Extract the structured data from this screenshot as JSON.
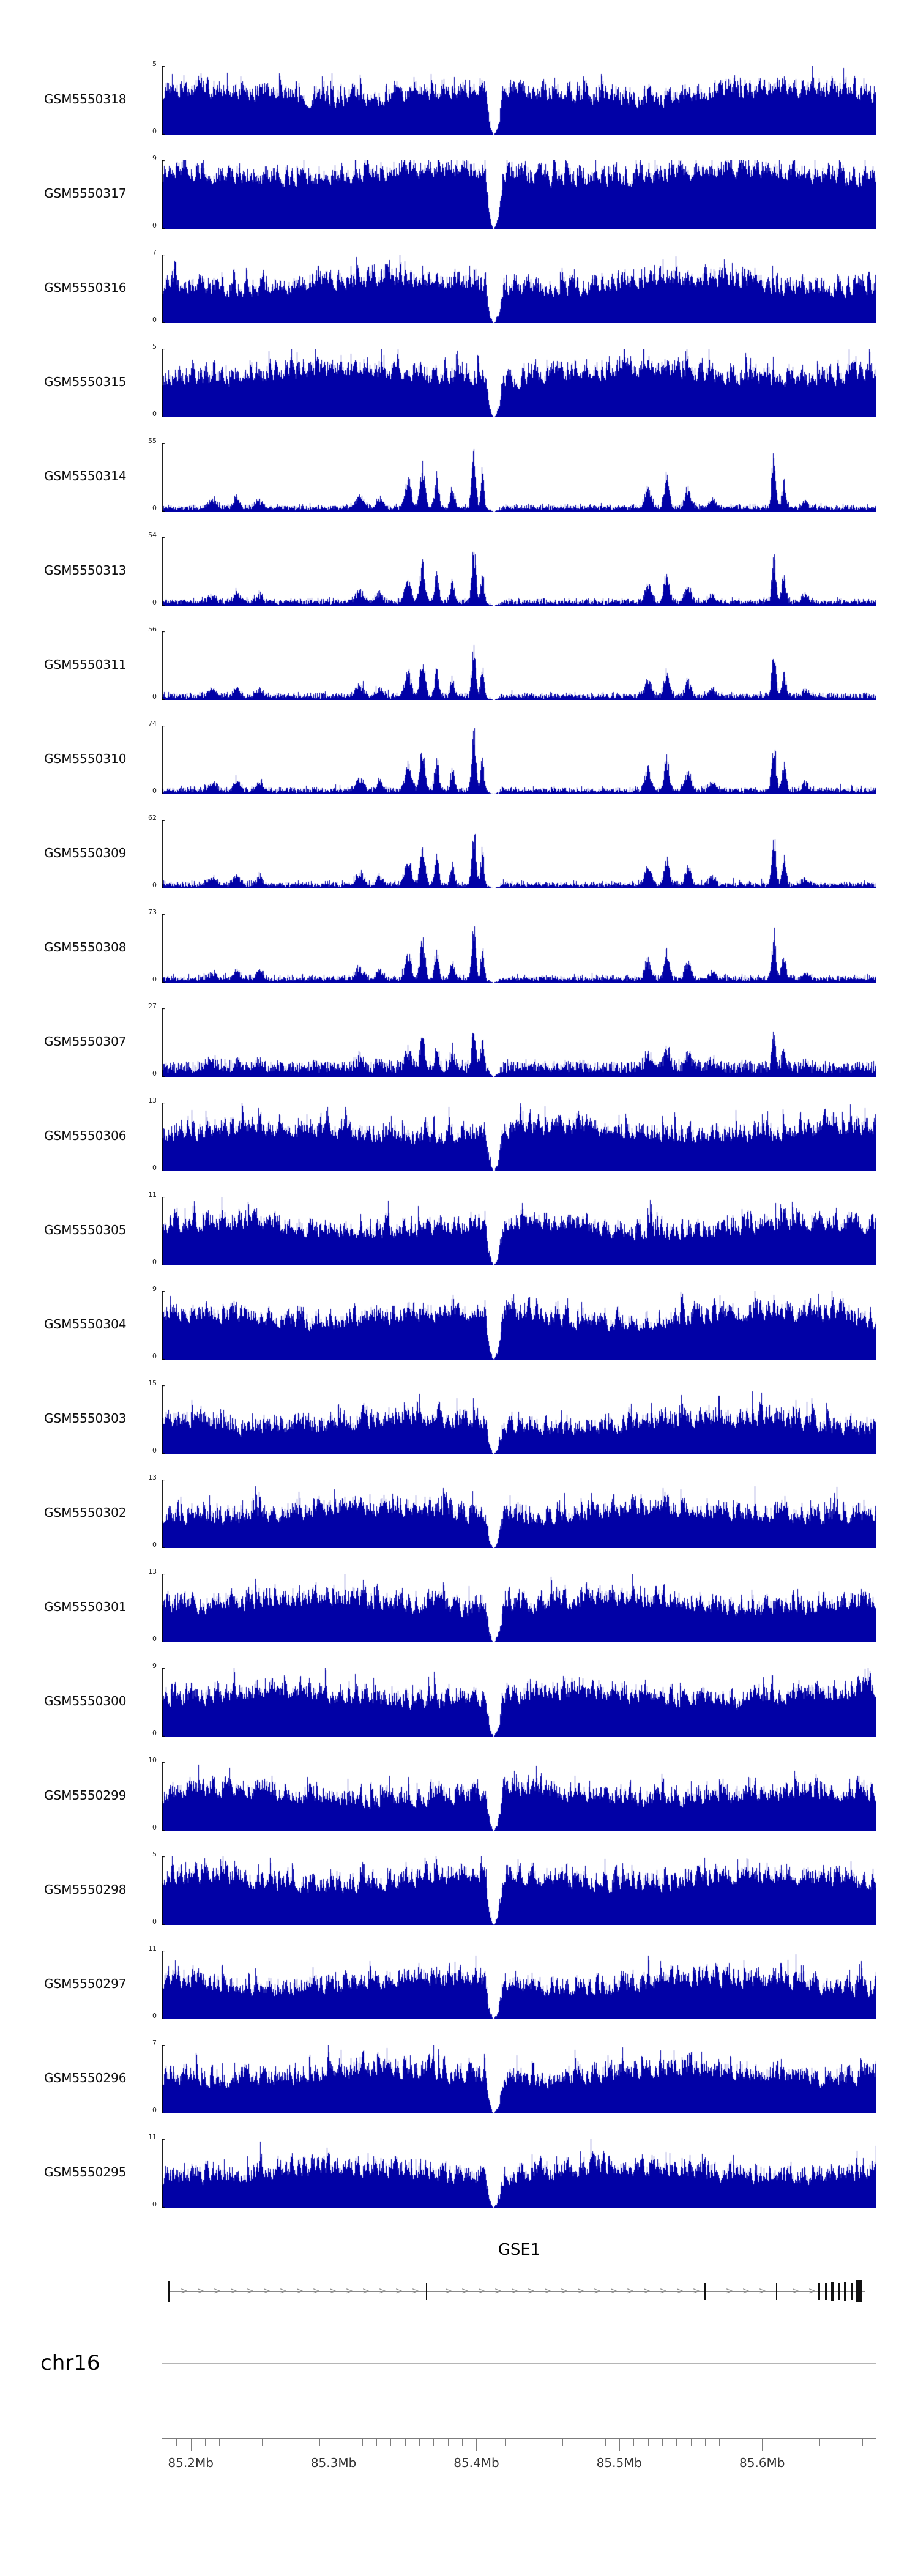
{
  "labels": {
    "gene_title": "GSE1",
    "chromosome": "chr16",
    "y_min": "0"
  },
  "chart_data": {
    "type": "area",
    "title": "",
    "description_type": "genome coverage tracks",
    "chromosome": "chr16",
    "x_range_mb": [
      85.18,
      85.68
    ],
    "x_tick_labels": [
      "85.2Mb",
      "85.3Mb",
      "85.4Mb",
      "85.5Mb",
      "85.6Mb"
    ],
    "x_tick_values_mb": [
      85.2,
      85.3,
      85.4,
      85.5,
      85.6
    ],
    "minor_tick_step_mb": 0.01,
    "grid": false,
    "legend": false,
    "signal_color": "#0101A6",
    "coverage_gap_mb": {
      "center": 85.412,
      "half_width": 0.006
    },
    "peak_profile": [
      {
        "mb": 85.215,
        "h": 0.12,
        "w": 0.004
      },
      {
        "mb": 85.232,
        "h": 0.18,
        "w": 0.003
      },
      {
        "mb": 85.248,
        "h": 0.14,
        "w": 0.003
      },
      {
        "mb": 85.318,
        "h": 0.2,
        "w": 0.004
      },
      {
        "mb": 85.332,
        "h": 0.16,
        "w": 0.003
      },
      {
        "mb": 85.352,
        "h": 0.45,
        "w": 0.003
      },
      {
        "mb": 85.362,
        "h": 0.7,
        "w": 0.0025
      },
      {
        "mb": 85.372,
        "h": 0.5,
        "w": 0.002
      },
      {
        "mb": 85.383,
        "h": 0.35,
        "w": 0.002
      },
      {
        "mb": 85.398,
        "h": 0.95,
        "w": 0.002
      },
      {
        "mb": 85.404,
        "h": 0.6,
        "w": 0.0015
      },
      {
        "mb": 85.52,
        "h": 0.35,
        "w": 0.003
      },
      {
        "mb": 85.533,
        "h": 0.5,
        "w": 0.0025
      },
      {
        "mb": 85.548,
        "h": 0.3,
        "w": 0.003
      },
      {
        "mb": 85.565,
        "h": 0.15,
        "w": 0.003
      },
      {
        "mb": 85.608,
        "h": 0.85,
        "w": 0.002
      },
      {
        "mb": 85.615,
        "h": 0.45,
        "w": 0.002
      },
      {
        "mb": 85.63,
        "h": 0.12,
        "w": 0.003
      }
    ],
    "tracks": [
      {
        "label": "GSM5550318",
        "ymin": 0,
        "ymax": 5,
        "profile": "dense",
        "fill": 0.52,
        "seed": 1
      },
      {
        "label": "GSM5550317",
        "ymin": 0,
        "ymax": 9,
        "profile": "dense",
        "fill": 0.72,
        "seed": 2
      },
      {
        "label": "GSM5550316",
        "ymin": 0,
        "ymax": 7,
        "profile": "dense",
        "fill": 0.5,
        "seed": 3
      },
      {
        "label": "GSM5550315",
        "ymin": 0,
        "ymax": 5,
        "profile": "dense",
        "fill": 0.55,
        "seed": 4
      },
      {
        "label": "GSM5550314",
        "ymin": 0,
        "ymax": 55,
        "profile": "peaks",
        "base": 0.05,
        "peak_scale": 1.0,
        "seed": 5
      },
      {
        "label": "GSM5550313",
        "ymin": 0,
        "ymax": 54,
        "profile": "peaks",
        "base": 0.05,
        "peak_scale": 0.92,
        "seed": 6
      },
      {
        "label": "GSM5550311",
        "ymin": 0,
        "ymax": 56,
        "profile": "peaks",
        "base": 0.05,
        "peak_scale": 0.88,
        "seed": 7
      },
      {
        "label": "GSM5550310",
        "ymin": 0,
        "ymax": 74,
        "profile": "peaks",
        "base": 0.05,
        "peak_scale": 1.0,
        "seed": 8
      },
      {
        "label": "GSM5550309",
        "ymin": 0,
        "ymax": 62,
        "profile": "peaks",
        "base": 0.05,
        "peak_scale": 0.95,
        "seed": 9
      },
      {
        "label": "GSM5550308",
        "ymin": 0,
        "ymax": 73,
        "profile": "peaks",
        "base": 0.05,
        "peak_scale": 0.9,
        "seed": 10
      },
      {
        "label": "GSM5550307",
        "ymin": 0,
        "ymax": 27,
        "profile": "peaks",
        "base": 0.14,
        "peak_scale": 0.7,
        "seed": 11
      },
      {
        "label": "GSM5550306",
        "ymin": 0,
        "ymax": 13,
        "profile": "dense",
        "fill": 0.5,
        "seed": 12
      },
      {
        "label": "GSM5550305",
        "ymin": 0,
        "ymax": 11,
        "profile": "dense",
        "fill": 0.48,
        "seed": 13
      },
      {
        "label": "GSM5550304",
        "ymin": 0,
        "ymax": 9,
        "profile": "dense",
        "fill": 0.55,
        "seed": 14
      },
      {
        "label": "GSM5550303",
        "ymin": 0,
        "ymax": 15,
        "profile": "dense",
        "fill": 0.38,
        "seed": 15
      },
      {
        "label": "GSM5550302",
        "ymin": 0,
        "ymax": 13,
        "profile": "dense",
        "fill": 0.45,
        "seed": 16
      },
      {
        "label": "GSM5550301",
        "ymin": 0,
        "ymax": 13,
        "profile": "dense",
        "fill": 0.5,
        "seed": 17
      },
      {
        "label": "GSM5550300",
        "ymin": 0,
        "ymax": 9,
        "profile": "dense",
        "fill": 0.52,
        "seed": 18
      },
      {
        "label": "GSM5550299",
        "ymin": 0,
        "ymax": 10,
        "profile": "dense",
        "fill": 0.45,
        "seed": 19
      },
      {
        "label": "GSM5550298",
        "ymin": 0,
        "ymax": 5,
        "profile": "dense",
        "fill": 0.58,
        "seed": 20
      },
      {
        "label": "GSM5550297",
        "ymin": 0,
        "ymax": 11,
        "profile": "dense",
        "fill": 0.45,
        "seed": 21
      },
      {
        "label": "GSM5550296",
        "ymin": 0,
        "ymax": 7,
        "profile": "dense",
        "fill": 0.5,
        "seed": 22
      },
      {
        "label": "GSM5550295",
        "ymin": 0,
        "ymax": 11,
        "profile": "dense",
        "fill": 0.45,
        "seed": 23
      }
    ],
    "gene": {
      "name": "GSE1",
      "strand": "right",
      "strand_marker": ">",
      "start_mb": 85.185,
      "end_mb": 85.672,
      "exons": [
        {
          "mb": 85.185,
          "w": 3,
          "h": 34
        },
        {
          "mb": 85.365,
          "w": 2,
          "h": 28
        },
        {
          "mb": 85.56,
          "w": 2,
          "h": 28
        },
        {
          "mb": 85.61,
          "w": 2,
          "h": 28
        },
        {
          "mb": 85.64,
          "w": 3,
          "h": 28
        },
        {
          "mb": 85.6445,
          "w": 3,
          "h": 28
        },
        {
          "mb": 85.649,
          "w": 4,
          "h": 32
        },
        {
          "mb": 85.6535,
          "w": 3,
          "h": 28
        },
        {
          "mb": 85.658,
          "w": 4,
          "h": 32
        },
        {
          "mb": 85.6625,
          "w": 3,
          "h": 28
        },
        {
          "mb": 85.668,
          "w": 11,
          "h": 36
        }
      ]
    }
  }
}
